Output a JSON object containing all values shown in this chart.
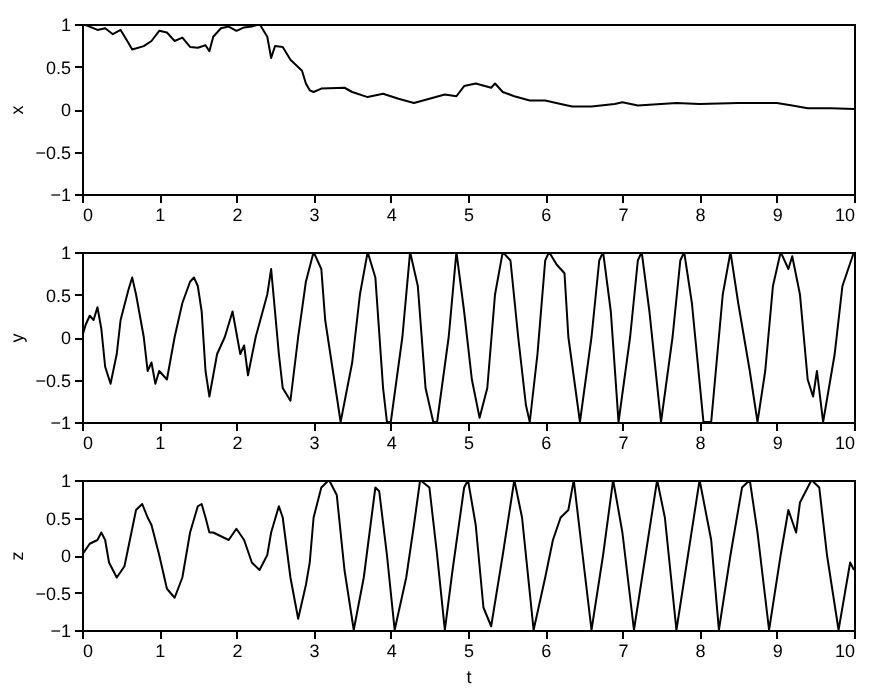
{
  "chart_data": [
    {
      "type": "line",
      "ylabel": "x",
      "color": "#000000",
      "xlim": [
        0,
        10
      ],
      "ylim": [
        -1,
        1
      ],
      "xticks": [
        0,
        1,
        2,
        3,
        4,
        5,
        6,
        7,
        8,
        9,
        10
      ],
      "yticks": [
        -1,
        -0.5,
        0,
        0.5,
        1
      ],
      "grid": false,
      "x": [
        0,
        0.1,
        0.2,
        0.3,
        0.4,
        0.5,
        0.6,
        0.65,
        0.8,
        0.9,
        1.0,
        1.1,
        1.2,
        1.3,
        1.4,
        1.5,
        1.6,
        1.65,
        1.7,
        1.8,
        1.9,
        2.0,
        2.1,
        2.2,
        2.3,
        2.4,
        2.45,
        2.5,
        2.6,
        2.7,
        2.85,
        2.9,
        2.95,
        3.0,
        3.1,
        3.4,
        3.5,
        3.7,
        3.9,
        4.1,
        4.3,
        4.5,
        4.7,
        4.85,
        4.95,
        5.1,
        5.3,
        5.35,
        5.45,
        5.6,
        5.8,
        6.0,
        6.2,
        6.35,
        6.6,
        6.9,
        7.0,
        7.2,
        7.5,
        7.7,
        8.0,
        8.5,
        8.8,
        9.0,
        9.2,
        9.4,
        9.7,
        10
      ],
      "values": [
        1,
        0.97,
        0.93,
        0.95,
        0.88,
        0.93,
        0.78,
        0.7,
        0.74,
        0.8,
        0.92,
        0.9,
        0.8,
        0.84,
        0.73,
        0.72,
        0.75,
        0.68,
        0.85,
        0.95,
        0.97,
        0.92,
        0.96,
        0.97,
        1.0,
        0.85,
        0.6,
        0.74,
        0.73,
        0.58,
        0.45,
        0.3,
        0.22,
        0.2,
        0.24,
        0.25,
        0.2,
        0.14,
        0.18,
        0.12,
        0.07,
        0.12,
        0.17,
        0.15,
        0.27,
        0.3,
        0.25,
        0.3,
        0.2,
        0.15,
        0.1,
        0.1,
        0.06,
        0.03,
        0.03,
        0.06,
        0.08,
        0.04,
        0.06,
        0.07,
        0.06,
        0.07,
        0.07,
        0.07,
        0.04,
        0.01,
        0.01,
        0.0
      ]
    },
    {
      "type": "line",
      "ylabel": "y",
      "color": "#000000",
      "xlim": [
        0,
        10
      ],
      "ylim": [
        -1,
        1
      ],
      "xticks": [
        0,
        1,
        2,
        3,
        4,
        5,
        6,
        7,
        8,
        9,
        10
      ],
      "yticks": [
        -1,
        -0.5,
        0,
        0.5,
        1
      ],
      "grid": false,
      "x": [
        0,
        0.05,
        0.1,
        0.15,
        0.2,
        0.25,
        0.3,
        0.37,
        0.45,
        0.5,
        0.6,
        0.65,
        0.7,
        0.8,
        0.85,
        0.9,
        0.95,
        1.0,
        1.1,
        1.2,
        1.3,
        1.4,
        1.45,
        1.5,
        1.55,
        1.6,
        1.65,
        1.75,
        1.85,
        1.95,
        2.05,
        2.1,
        2.15,
        2.25,
        2.4,
        2.45,
        2.55,
        2.6,
        2.7,
        2.8,
        2.9,
        3.0,
        3.1,
        3.15,
        3.25,
        3.35,
        3.5,
        3.6,
        3.7,
        3.8,
        3.9,
        3.95,
        4.0,
        4.15,
        4.25,
        4.35,
        4.45,
        4.55,
        4.6,
        4.75,
        4.85,
        4.95,
        5.05,
        5.15,
        5.25,
        5.35,
        5.45,
        5.55,
        5.65,
        5.75,
        5.8,
        5.9,
        6.0,
        6.05,
        6.15,
        6.25,
        6.3,
        6.45,
        6.6,
        6.7,
        6.75,
        6.85,
        6.95,
        7.1,
        7.2,
        7.25,
        7.35,
        7.5,
        7.65,
        7.75,
        7.8,
        7.9,
        8.05,
        8.15,
        8.3,
        8.4,
        8.5,
        8.65,
        8.75,
        8.85,
        8.95,
        9.05,
        9.15,
        9.2,
        9.3,
        9.4,
        9.47,
        9.52,
        9.6,
        9.75,
        9.85,
        10
      ],
      "values": [
        0,
        0.15,
        0.25,
        0.2,
        0.35,
        0.1,
        -0.35,
        -0.55,
        -0.2,
        0.2,
        0.55,
        0.7,
        0.5,
        0.0,
        -0.4,
        -0.3,
        -0.55,
        -0.4,
        -0.5,
        0.0,
        0.4,
        0.65,
        0.7,
        0.6,
        0.3,
        -0.4,
        -0.7,
        -0.2,
        0.0,
        0.3,
        -0.2,
        -0.1,
        -0.45,
        0.0,
        0.5,
        0.8,
        -0.2,
        -0.6,
        -0.75,
        0.0,
        0.65,
        1.0,
        0.8,
        0.2,
        -0.4,
        -1.0,
        -0.3,
        0.5,
        1.0,
        0.7,
        -0.6,
        -1.0,
        -1.0,
        0.0,
        1.0,
        0.6,
        -0.6,
        -1.0,
        -1.0,
        0.0,
        1.0,
        0.3,
        -0.5,
        -0.95,
        -0.6,
        0.5,
        1.0,
        0.9,
        0.0,
        -0.8,
        -1.0,
        -0.2,
        0.9,
        1.0,
        0.85,
        0.75,
        0.0,
        -1.0,
        0.0,
        0.9,
        1.0,
        0.3,
        -1.0,
        0.0,
        0.9,
        1.0,
        0.3,
        -1.0,
        0.0,
        0.9,
        1.0,
        0.4,
        -1.0,
        -1.0,
        0.5,
        1.0,
        0.4,
        -0.4,
        -1.0,
        -0.4,
        0.6,
        1.0,
        0.8,
        0.95,
        0.5,
        -0.5,
        -0.7,
        -0.4,
        -1.0,
        -0.2,
        0.6,
        1.0
      ]
    },
    {
      "type": "line",
      "xlabel": "t",
      "ylabel": "z",
      "color": "#000000",
      "xlim": [
        0,
        10
      ],
      "ylim": [
        -1,
        1
      ],
      "xticks": [
        0,
        1,
        2,
        3,
        4,
        5,
        6,
        7,
        8,
        9,
        10
      ],
      "yticks": [
        -1,
        -0.5,
        0,
        0.5,
        1
      ],
      "grid": false,
      "x": [
        0,
        0.1,
        0.2,
        0.25,
        0.3,
        0.35,
        0.45,
        0.55,
        0.6,
        0.7,
        0.78,
        0.85,
        0.9,
        1.0,
        1.1,
        1.2,
        1.3,
        1.4,
        1.5,
        1.55,
        1.6,
        1.65,
        1.7,
        1.8,
        1.9,
        2.0,
        2.1,
        2.2,
        2.3,
        2.4,
        2.45,
        2.55,
        2.6,
        2.7,
        2.8,
        2.9,
        2.95,
        3.0,
        3.1,
        3.2,
        3.3,
        3.4,
        3.52,
        3.65,
        3.75,
        3.8,
        3.85,
        3.95,
        4.05,
        4.2,
        4.3,
        4.38,
        4.5,
        4.6,
        4.7,
        4.8,
        4.95,
        5.0,
        5.1,
        5.2,
        5.3,
        5.45,
        5.6,
        5.7,
        5.85,
        6.0,
        6.1,
        6.2,
        6.3,
        6.37,
        6.45,
        6.6,
        6.75,
        6.88,
        7.0,
        7.15,
        7.3,
        7.45,
        7.55,
        7.7,
        7.85,
        8.0,
        8.15,
        8.25,
        8.4,
        8.55,
        8.65,
        8.75,
        8.9,
        9.05,
        9.15,
        9.25,
        9.3,
        9.4,
        9.45,
        9.55,
        9.65,
        9.8,
        9.95,
        10
      ],
      "values": [
        0,
        0.15,
        0.2,
        0.3,
        0.2,
        -0.1,
        -0.3,
        -0.15,
        0.1,
        0.6,
        0.68,
        0.5,
        0.4,
        0.0,
        -0.45,
        -0.57,
        -0.3,
        0.3,
        0.65,
        0.68,
        0.5,
        0.3,
        0.3,
        0.25,
        0.2,
        0.35,
        0.2,
        -0.1,
        -0.2,
        0.0,
        0.3,
        0.65,
        0.5,
        -0.3,
        -0.85,
        -0.4,
        -0.1,
        0.5,
        0.9,
        1.0,
        0.8,
        -0.2,
        -1.0,
        -0.3,
        0.5,
        0.9,
        0.85,
        0.0,
        -1.0,
        -0.3,
        0.4,
        1.0,
        0.9,
        0.0,
        -1.0,
        -0.2,
        0.9,
        1.0,
        0.4,
        -0.7,
        -0.95,
        0.0,
        1.0,
        0.5,
        -1.0,
        -0.3,
        0.2,
        0.5,
        0.6,
        1.0,
        0.3,
        -1.0,
        0.0,
        1.0,
        0.3,
        -1.0,
        0.0,
        1.0,
        0.5,
        -1.0,
        0.0,
        1.0,
        0.2,
        -1.0,
        0.0,
        0.9,
        1.0,
        0.3,
        -1.0,
        0.0,
        0.6,
        0.3,
        0.7,
        0.9,
        1.0,
        0.9,
        0.0,
        -1.0,
        -0.1,
        -0.2
      ]
    }
  ]
}
